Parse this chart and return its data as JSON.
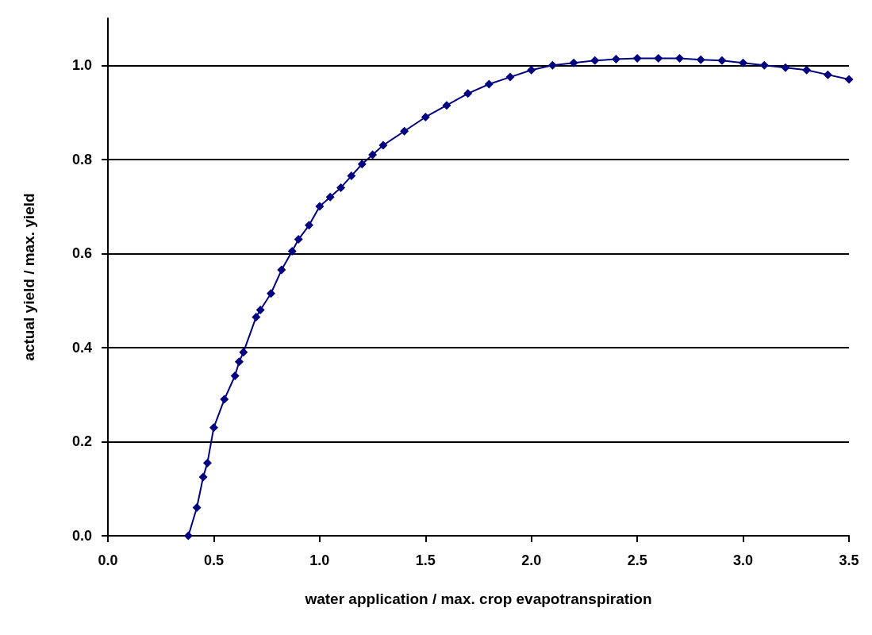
{
  "chart_data": {
    "type": "line",
    "xlabel": "water application / max. crop evapotranspiration",
    "ylabel": "actual yield / max. yield",
    "x": [
      0.38,
      0.42,
      0.45,
      0.47,
      0.5,
      0.55,
      0.6,
      0.62,
      0.64,
      0.7,
      0.72,
      0.77,
      0.82,
      0.87,
      0.9,
      0.95,
      1.0,
      1.05,
      1.1,
      1.15,
      1.2,
      1.25,
      1.3,
      1.4,
      1.5,
      1.6,
      1.7,
      1.8,
      1.9,
      2.0,
      2.1,
      2.2,
      2.3,
      2.4,
      2.5,
      2.6,
      2.7,
      2.8,
      2.9,
      3.0,
      3.1,
      3.2,
      3.3,
      3.4,
      3.5
    ],
    "series": [
      {
        "color": "#000080",
        "values": [
          0.0,
          0.06,
          0.125,
          0.155,
          0.23,
          0.29,
          0.34,
          0.37,
          0.39,
          0.465,
          0.48,
          0.515,
          0.565,
          0.605,
          0.63,
          0.66,
          0.7,
          0.72,
          0.74,
          0.765,
          0.79,
          0.81,
          0.83,
          0.86,
          0.89,
          0.915,
          0.94,
          0.96,
          0.975,
          0.99,
          1.0,
          1.005,
          1.01,
          1.013,
          1.015,
          1.015,
          1.015,
          1.012,
          1.01,
          1.005,
          1.0,
          0.995,
          0.99,
          0.98,
          0.97
        ]
      }
    ],
    "xlim": [
      0,
      3.5
    ],
    "xticks": [
      {
        "value": 0,
        "label": "0.0"
      },
      0.5,
      {
        "value": 1,
        "label": "1.0"
      },
      1.5,
      {
        "value": 2,
        "label": "2.0"
      },
      2.5,
      {
        "value": 3,
        "label": "3.0"
      },
      3.5
    ],
    "ylim": [
      0,
      1.1
    ],
    "yticks": [
      {
        "value": 0,
        "label": "0.0"
      },
      0.2,
      0.4,
      0.6,
      0.8,
      {
        "value": 1,
        "label": "1.0"
      }
    ],
    "grid": "y",
    "marker": "diamond",
    "line_style": "solid"
  }
}
